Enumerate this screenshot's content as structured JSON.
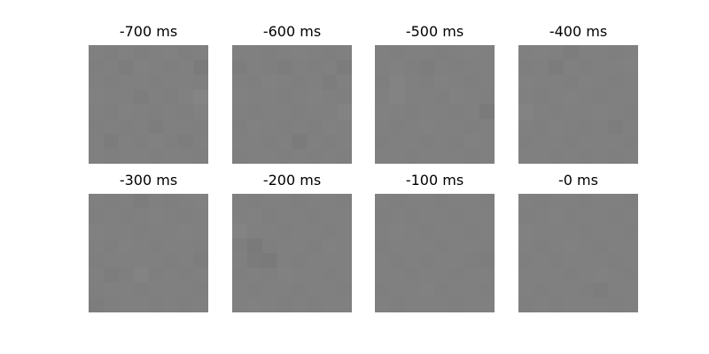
{
  "chart_data": {
    "type": "heatmap",
    "colormap": "gray",
    "grid": false,
    "panels": [
      {
        "title": "-700 ms",
        "values": [
          [
            0.5,
            0.49,
            0.51,
            0.49,
            0.5,
            0.51,
            0.49,
            0.5
          ],
          [
            0.49,
            0.5,
            0.48,
            0.51,
            0.5,
            0.49,
            0.5,
            0.46
          ],
          [
            0.5,
            0.49,
            0.5,
            0.5,
            0.49,
            0.5,
            0.5,
            0.49
          ],
          [
            0.51,
            0.5,
            0.5,
            0.48,
            0.5,
            0.49,
            0.51,
            0.53
          ],
          [
            0.5,
            0.49,
            0.51,
            0.5,
            0.49,
            0.5,
            0.49,
            0.51
          ],
          [
            0.49,
            0.5,
            0.49,
            0.5,
            0.48,
            0.5,
            0.5,
            0.49
          ],
          [
            0.5,
            0.47,
            0.5,
            0.49,
            0.51,
            0.49,
            0.48,
            0.5
          ],
          [
            0.5,
            0.49,
            0.5,
            0.5,
            0.49,
            0.5,
            0.5,
            0.49
          ]
        ]
      },
      {
        "title": "-600 ms",
        "values": [
          [
            0.5,
            0.5,
            0.49,
            0.5,
            0.51,
            0.5,
            0.49,
            0.5
          ],
          [
            0.48,
            0.5,
            0.49,
            0.48,
            0.5,
            0.49,
            0.5,
            0.47
          ],
          [
            0.5,
            0.49,
            0.51,
            0.5,
            0.49,
            0.5,
            0.48,
            0.5
          ],
          [
            0.51,
            0.5,
            0.5,
            0.49,
            0.5,
            0.51,
            0.5,
            0.49
          ],
          [
            0.5,
            0.49,
            0.5,
            0.5,
            0.49,
            0.5,
            0.5,
            0.52
          ],
          [
            0.49,
            0.51,
            0.5,
            0.49,
            0.5,
            0.49,
            0.51,
            0.5
          ],
          [
            0.5,
            0.5,
            0.49,
            0.5,
            0.46,
            0.5,
            0.49,
            0.5
          ],
          [
            0.49,
            0.5,
            0.5,
            0.49,
            0.5,
            0.49,
            0.5,
            0.49
          ]
        ]
      },
      {
        "title": "-500 ms",
        "values": [
          [
            0.5,
            0.49,
            0.5,
            0.5,
            0.49,
            0.5,
            0.51,
            0.5
          ],
          [
            0.5,
            0.51,
            0.49,
            0.48,
            0.5,
            0.49,
            0.5,
            0.5
          ],
          [
            0.49,
            0.52,
            0.5,
            0.49,
            0.51,
            0.5,
            0.49,
            0.5
          ],
          [
            0.5,
            0.52,
            0.5,
            0.5,
            0.49,
            0.51,
            0.5,
            0.49
          ],
          [
            0.51,
            0.5,
            0.49,
            0.5,
            0.5,
            0.49,
            0.5,
            0.45
          ],
          [
            0.5,
            0.49,
            0.5,
            0.51,
            0.5,
            0.5,
            0.49,
            0.5
          ],
          [
            0.49,
            0.5,
            0.5,
            0.49,
            0.5,
            0.49,
            0.51,
            0.5
          ],
          [
            0.5,
            0.5,
            0.49,
            0.5,
            0.5,
            0.5,
            0.49,
            0.5
          ]
        ]
      },
      {
        "title": "-400 ms",
        "values": [
          [
            0.5,
            0.51,
            0.5,
            0.48,
            0.5,
            0.5,
            0.49,
            0.5
          ],
          [
            0.49,
            0.5,
            0.47,
            0.5,
            0.49,
            0.5,
            0.5,
            0.51
          ],
          [
            0.51,
            0.5,
            0.5,
            0.49,
            0.51,
            0.5,
            0.49,
            0.5
          ],
          [
            0.5,
            0.49,
            0.5,
            0.51,
            0.5,
            0.49,
            0.5,
            0.5
          ],
          [
            0.52,
            0.5,
            0.49,
            0.5,
            0.5,
            0.51,
            0.5,
            0.49
          ],
          [
            0.5,
            0.49,
            0.51,
            0.5,
            0.49,
            0.5,
            0.48,
            0.5
          ],
          [
            0.49,
            0.5,
            0.5,
            0.49,
            0.5,
            0.5,
            0.5,
            0.49
          ],
          [
            0.5,
            0.5,
            0.49,
            0.5,
            0.49,
            0.5,
            0.49,
            0.5
          ]
        ]
      },
      {
        "title": "-300 ms",
        "values": [
          [
            0.5,
            0.49,
            0.5,
            0.48,
            0.5,
            0.49,
            0.5,
            0.51
          ],
          [
            0.49,
            0.5,
            0.49,
            0.5,
            0.51,
            0.5,
            0.49,
            0.5
          ],
          [
            0.51,
            0.5,
            0.5,
            0.49,
            0.5,
            0.5,
            0.51,
            0.5
          ],
          [
            0.5,
            0.49,
            0.51,
            0.5,
            0.49,
            0.5,
            0.5,
            0.49
          ],
          [
            0.49,
            0.5,
            0.5,
            0.5,
            0.5,
            0.49,
            0.5,
            0.48
          ],
          [
            0.5,
            0.48,
            0.49,
            0.52,
            0.49,
            0.5,
            0.49,
            0.5
          ],
          [
            0.49,
            0.5,
            0.5,
            0.49,
            0.5,
            0.5,
            0.5,
            0.49
          ],
          [
            0.48,
            0.49,
            0.5,
            0.5,
            0.49,
            0.5,
            0.49,
            0.5
          ]
        ]
      },
      {
        "title": "-200 ms",
        "values": [
          [
            0.5,
            0.49,
            0.5,
            0.5,
            0.49,
            0.5,
            0.5,
            0.49
          ],
          [
            0.5,
            0.51,
            0.49,
            0.5,
            0.5,
            0.49,
            0.5,
            0.5
          ],
          [
            0.52,
            0.5,
            0.5,
            0.49,
            0.5,
            0.5,
            0.49,
            0.5
          ],
          [
            0.49,
            0.45,
            0.49,
            0.5,
            0.5,
            0.49,
            0.51,
            0.5
          ],
          [
            0.5,
            0.46,
            0.45,
            0.5,
            0.49,
            0.5,
            0.5,
            0.5
          ],
          [
            0.49,
            0.5,
            0.49,
            0.51,
            0.5,
            0.5,
            0.49,
            0.5
          ],
          [
            0.5,
            0.49,
            0.5,
            0.5,
            0.49,
            0.5,
            0.5,
            0.49
          ],
          [
            0.5,
            0.51,
            0.5,
            0.49,
            0.5,
            0.49,
            0.5,
            0.5
          ]
        ]
      },
      {
        "title": "-100 ms",
        "values": [
          [
            0.5,
            0.49,
            0.5,
            0.5,
            0.49,
            0.5,
            0.5,
            0.49
          ],
          [
            0.49,
            0.5,
            0.49,
            0.5,
            0.5,
            0.49,
            0.5,
            0.5
          ],
          [
            0.5,
            0.51,
            0.5,
            0.49,
            0.5,
            0.5,
            0.49,
            0.5
          ],
          [
            0.49,
            0.5,
            0.5,
            0.5,
            0.49,
            0.5,
            0.5,
            0.49
          ],
          [
            0.5,
            0.49,
            0.5,
            0.49,
            0.5,
            0.5,
            0.49,
            0.48
          ],
          [
            0.5,
            0.5,
            0.49,
            0.5,
            0.5,
            0.49,
            0.5,
            0.5
          ],
          [
            0.49,
            0.5,
            0.5,
            0.51,
            0.49,
            0.5,
            0.5,
            0.49
          ],
          [
            0.5,
            0.49,
            0.5,
            0.5,
            0.5,
            0.49,
            0.5,
            0.5
          ]
        ]
      },
      {
        "title": "-0 ms",
        "values": [
          [
            0.5,
            0.49,
            0.5,
            0.5,
            0.49,
            0.5,
            0.5,
            0.49
          ],
          [
            0.49,
            0.5,
            0.51,
            0.49,
            0.5,
            0.5,
            0.49,
            0.5
          ],
          [
            0.51,
            0.5,
            0.5,
            0.5,
            0.49,
            0.5,
            0.5,
            0.49
          ],
          [
            0.5,
            0.49,
            0.5,
            0.51,
            0.5,
            0.49,
            0.5,
            0.5
          ],
          [
            0.49,
            0.5,
            0.49,
            0.5,
            0.5,
            0.5,
            0.49,
            0.5
          ],
          [
            0.5,
            0.5,
            0.5,
            0.49,
            0.5,
            0.51,
            0.5,
            0.49
          ],
          [
            0.5,
            0.49,
            0.5,
            0.5,
            0.49,
            0.48,
            0.5,
            0.5
          ],
          [
            0.49,
            0.5,
            0.49,
            0.5,
            0.5,
            0.5,
            0.49,
            0.5
          ]
        ]
      }
    ]
  }
}
